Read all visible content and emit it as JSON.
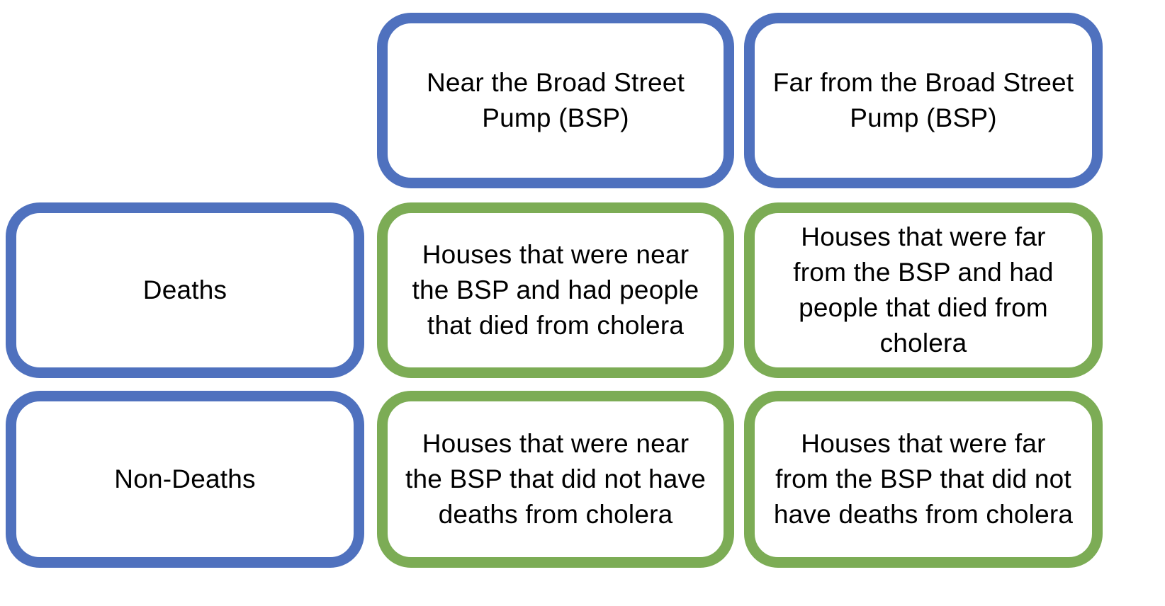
{
  "columns": {
    "near": "Near the Broad Street Pump (BSP)",
    "far": "Far from the Broad Street Pump (BSP)"
  },
  "rows": {
    "deaths": "Deaths",
    "non_deaths": "Non-Deaths"
  },
  "cells": {
    "deaths_near": "Houses that were near the BSP and had people that died from cholera",
    "deaths_far": "Houses that were far from the BSP and had people that died from cholera",
    "non_deaths_near": "Houses that were near the BSP that did not have deaths from cholera",
    "non_deaths_far": "Houses that were far from the BSP that did not have deaths from cholera"
  },
  "colors": {
    "header_border": "#4f71be",
    "cell_border": "#7cac55"
  }
}
